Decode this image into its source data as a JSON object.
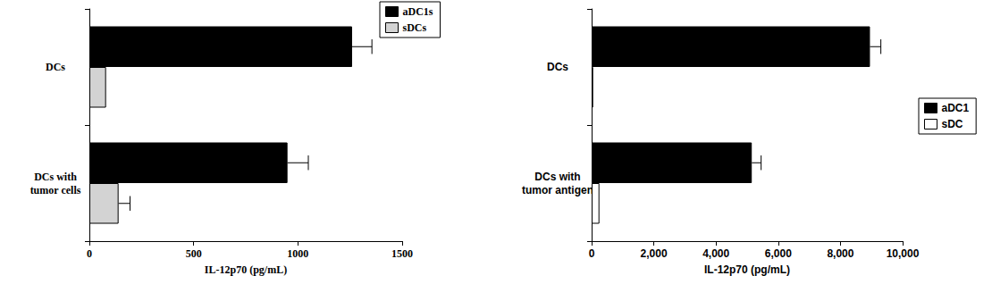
{
  "chart_data": [
    {
      "type": "bar",
      "orientation": "horizontal",
      "categories": [
        "DCs",
        "DCs with\ntumor cells"
      ],
      "x_label": "IL-12p70 (pg/mL)",
      "series": [
        {
          "name": "aDC1s",
          "color": "#000000",
          "values": [
            1260,
            950
          ],
          "errors": [
            95,
            100
          ]
        },
        {
          "name": "sDCs",
          "color": "#d3d3d3",
          "values": [
            80,
            140
          ],
          "errors": [
            null,
            55
          ]
        }
      ],
      "xlim": [
        0,
        1500
      ],
      "xticks": [
        0,
        500,
        1000,
        1500
      ],
      "legend": "upper right"
    },
    {
      "type": "bar",
      "orientation": "horizontal",
      "categories": [
        "DCs",
        "DCs with\ntumor antigen"
      ],
      "x_label": "IL-12p70 (pg/mL)",
      "series": [
        {
          "name": "aDC1",
          "color": "#000000",
          "values": [
            8950,
            5150
          ],
          "errors": [
            350,
            300
          ]
        },
        {
          "name": "sDC",
          "color": "#ffffff",
          "values": [
            50,
            250
          ],
          "errors": [
            null,
            null
          ]
        }
      ],
      "xlim": [
        0,
        10000
      ],
      "xticks": [
        0,
        {
          "value": 2000,
          "label": "2,000"
        },
        {
          "value": 4000,
          "label": "4,000"
        },
        {
          "value": 6000,
          "label": "6,000"
        },
        {
          "value": 8000,
          "label": "8,000"
        },
        {
          "value": 10000,
          "label": "10,000"
        }
      ],
      "legend": "right"
    }
  ]
}
